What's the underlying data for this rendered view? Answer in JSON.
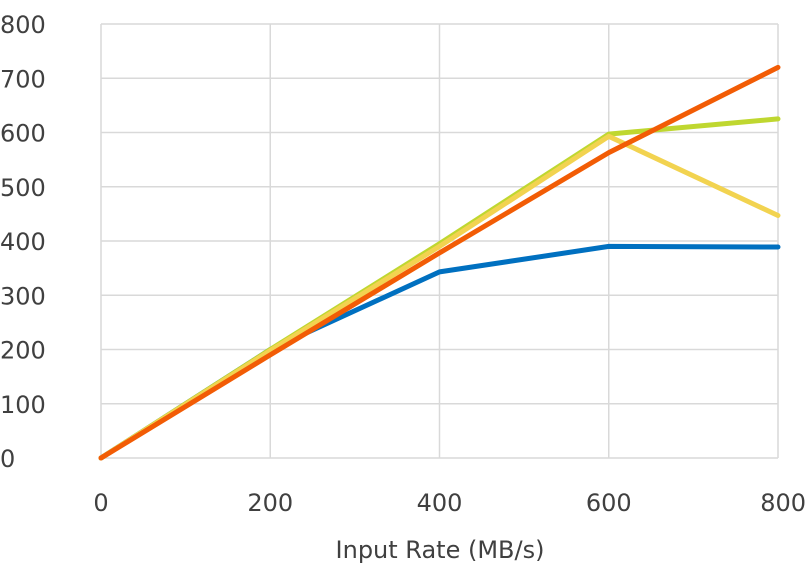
{
  "chart_data": {
    "type": "line",
    "title": "",
    "xlabel": "Input Rate (MB/s)",
    "ylabel": "",
    "x": [
      0,
      200,
      400,
      600,
      800
    ],
    "xlim": [
      0,
      800
    ],
    "ylim": [
      0,
      800
    ],
    "x_ticks": [
      "0",
      "200",
      "400",
      "600",
      "800"
    ],
    "y_ticks": [
      "0",
      "100",
      "200",
      "300",
      "400",
      "500",
      "600",
      "700",
      "800"
    ],
    "grid": true,
    "legend": "none",
    "series": [
      {
        "color": "#0070c0",
        "values": [
          0,
          200,
          343,
          390,
          389
        ]
      },
      {
        "color": "#bfd730",
        "values": [
          0,
          200,
          395,
          597,
          625
        ]
      },
      {
        "color": "#f2d350",
        "values": [
          0,
          198,
          390,
          593,
          447
        ]
      },
      {
        "color": "#f25c05",
        "values": [
          0,
          190,
          378,
          563,
          720
        ]
      }
    ]
  }
}
